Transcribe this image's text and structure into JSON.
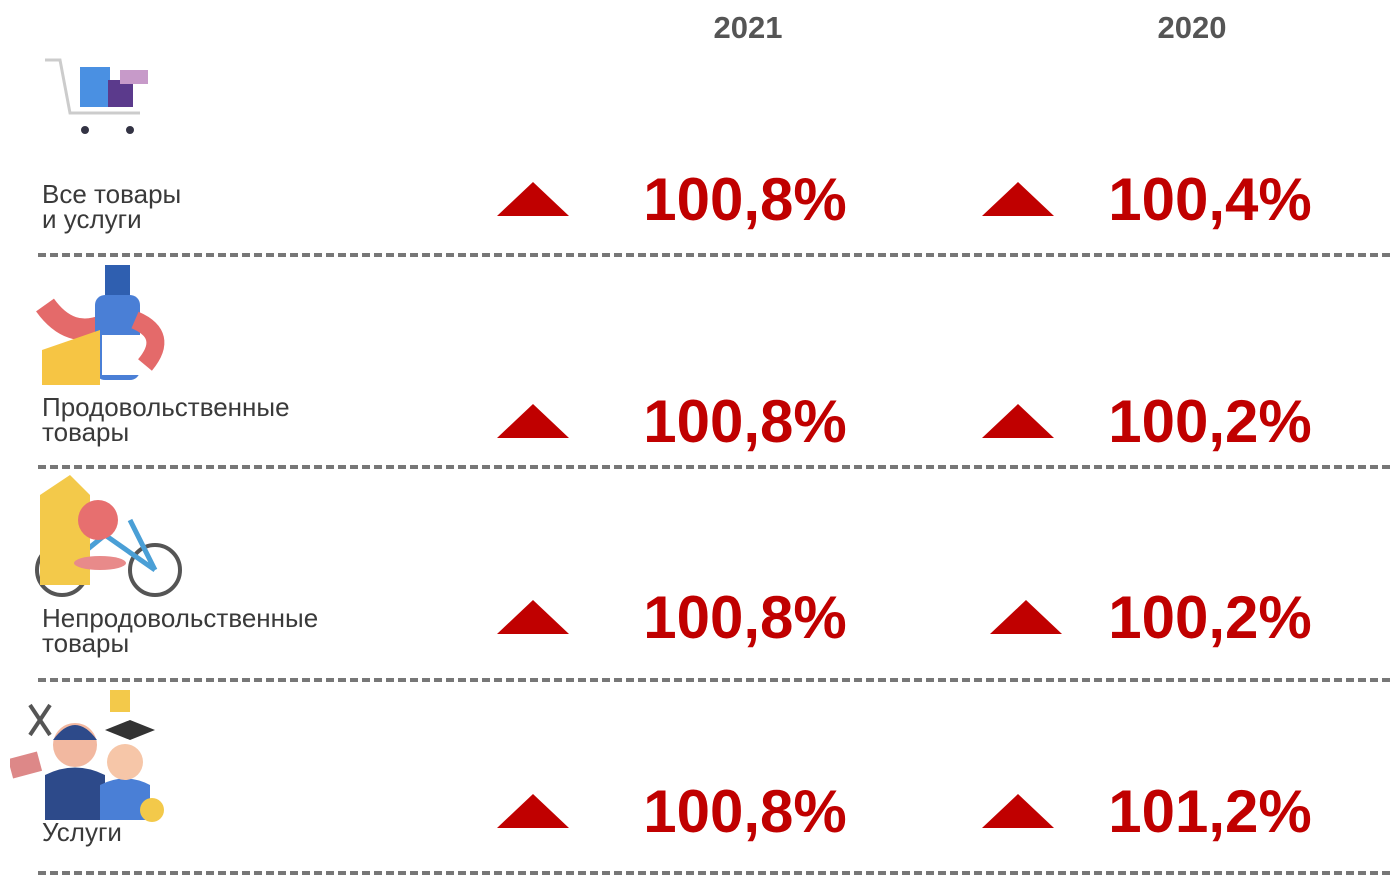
{
  "header": {
    "columns": [
      "2021",
      "2020"
    ]
  },
  "table": {
    "rows": [
      {
        "label": "Все товары\nи услуги",
        "values": [
          "100,8%",
          "100,4%"
        ]
      },
      {
        "label": "Продовольственные\nтовары",
        "values": [
          "100,8%",
          "100,2%"
        ]
      },
      {
        "label": "Непродовольственные\nтовары",
        "values": [
          "100,8%",
          "100,2%"
        ]
      },
      {
        "label": "Услуги",
        "values": [
          "100,8%",
          "101,2%"
        ]
      }
    ]
  }
}
